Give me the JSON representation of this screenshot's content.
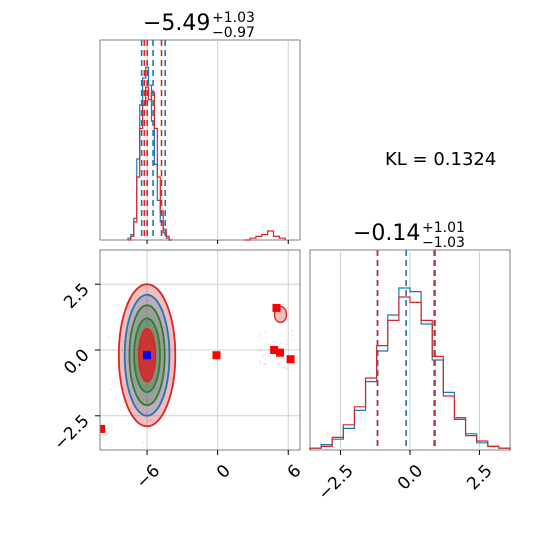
{
  "chart_data": [
    {
      "type": "histogram",
      "panel": "marginal-param-1",
      "title": {
        "median": "−5.49",
        "upper": "+1.03",
        "lower": "−0.97"
      },
      "xlim": [
        -10,
        7
      ],
      "series": [
        {
          "name": "",
          "color": "#1f77b4",
          "bins_x": [
            -7.5,
            -7.25,
            -7.0,
            -6.75,
            -6.5,
            -6.25,
            -6.0,
            -5.75,
            -5.5,
            -5.25,
            -5.0,
            -4.75,
            -4.5,
            -4.25,
            -4.0
          ],
          "counts": [
            0.01,
            0.03,
            0.12,
            0.45,
            0.75,
            0.9,
            0.96,
            0.86,
            0.66,
            0.42,
            0.22,
            0.1,
            0.04,
            0.01,
            0.0
          ]
        },
        {
          "name": "",
          "color": "#d62728",
          "bins_x": [
            -7.5,
            -7.25,
            -7.0,
            -6.75,
            -6.5,
            -6.25,
            -6.0,
            -5.75,
            -5.5,
            -5.25,
            -5.0,
            -4.75,
            -4.5,
            -4.25,
            -4.0,
            2.5,
            3.0,
            3.5,
            4.0,
            4.5,
            5.0,
            5.5
          ],
          "counts": [
            0.0,
            0.02,
            0.1,
            0.35,
            0.62,
            0.75,
            0.85,
            0.78,
            0.82,
            0.62,
            0.35,
            0.16,
            0.06,
            0.02,
            0.0,
            0.0,
            0.01,
            0.02,
            0.03,
            0.05,
            0.02,
            0.01
          ]
        }
      ],
      "quantile_lines": [
        {
          "color": "#1f77b4",
          "x": [
            -6.46,
            -5.49,
            -4.46
          ]
        },
        {
          "color": "#d62728",
          "x": [
            -6.23,
            -5.99,
            -4.77
          ]
        }
      ]
    },
    {
      "type": "histogram",
      "panel": "marginal-param-2",
      "title": {
        "median": "−0.14",
        "upper": "+1.01",
        "lower": "−1.03"
      },
      "xlim": [
        -3.6,
        3.6
      ],
      "xticks": [
        "−2.5",
        "0.0",
        "2.5"
      ],
      "series": [
        {
          "name": "",
          "color": "#1f77b4",
          "bins_x": [
            -3.4,
            -3.0,
            -2.6,
            -2.2,
            -1.8,
            -1.4,
            -1.0,
            -0.6,
            -0.2,
            0.2,
            0.6,
            1.0,
            1.4,
            1.8,
            2.2,
            2.6,
            3.0,
            3.4
          ],
          "counts": [
            0.01,
            0.03,
            0.06,
            0.12,
            0.22,
            0.38,
            0.55,
            0.75,
            0.9,
            0.88,
            0.7,
            0.5,
            0.32,
            0.18,
            0.09,
            0.04,
            0.02,
            0.01
          ]
        },
        {
          "name": "",
          "color": "#d62728",
          "bins_x": [
            -3.4,
            -3.0,
            -2.6,
            -2.2,
            -1.8,
            -1.4,
            -1.0,
            -0.6,
            -0.2,
            0.2,
            0.6,
            1.0,
            1.4,
            1.8,
            2.2,
            2.6,
            3.0,
            3.4
          ],
          "counts": [
            0.01,
            0.02,
            0.07,
            0.14,
            0.24,
            0.4,
            0.58,
            0.72,
            0.85,
            0.82,
            0.72,
            0.52,
            0.3,
            0.17,
            0.08,
            0.05,
            0.02,
            0.01
          ]
        }
      ],
      "quantile_lines": [
        {
          "color": "#1f77b4",
          "x": [
            -1.17,
            -0.14,
            0.87
          ]
        },
        {
          "color": "#d62728",
          "x": [
            -1.17,
            0.9
          ]
        }
      ]
    },
    {
      "type": "contour",
      "panel": "joint",
      "xlim": [
        -10,
        7
      ],
      "ylim": [
        -3.8,
        3.8
      ],
      "xticks": [
        "−6",
        "0",
        "6"
      ],
      "yticks": [
        "2.5",
        "0.0",
        "−2.5"
      ],
      "grid": true,
      "center": {
        "x": -6.0,
        "y": -0.2
      },
      "marker_blue": {
        "x": -6.0,
        "y": -0.2,
        "color": "#0000ff"
      },
      "red_markers": [
        {
          "x": -0.1,
          "y": -0.2
        },
        {
          "x": 4.8,
          "y": 0.0
        },
        {
          "x": 5.3,
          "y": -0.1
        },
        {
          "x": 6.2,
          "y": -0.35
        },
        {
          "x": 5.0,
          "y": 1.6
        },
        {
          "x": -9.9,
          "y": -3.0
        }
      ],
      "contours": [
        {
          "color": "#d62728",
          "fill": "rgba(214,39,40,0.30)",
          "rx": 2.4,
          "ry": 2.7
        },
        {
          "color": "#1f77b4",
          "fill": "rgba(31,119,180,0.25)",
          "rx": 1.9,
          "ry": 2.3
        },
        {
          "color": "#2e7d32",
          "fill": "rgba(46,125,50,0.25)",
          "rx": 1.5,
          "ry": 1.9
        },
        {
          "color": "#2e7d32",
          "fill": "rgba(46,125,50,0.30)",
          "rx": 1.1,
          "ry": 1.4
        },
        {
          "color": "#d62728",
          "fill": "rgba(214,39,40,0.85)",
          "rx": 0.7,
          "ry": 1.0
        }
      ]
    }
  ],
  "annotation": {
    "kl_text": "KL = 0.1324"
  }
}
